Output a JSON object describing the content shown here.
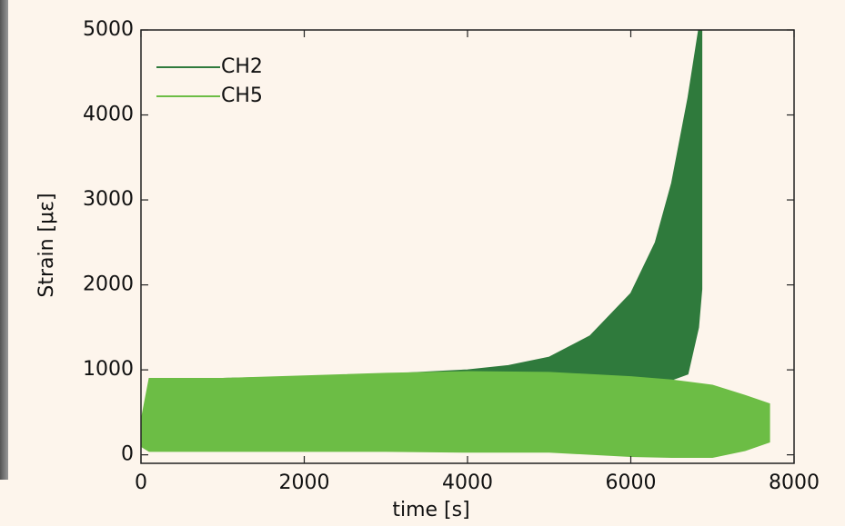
{
  "chart_data": {
    "type": "band",
    "xlabel": "time [s]",
    "ylabel": "Strain [με]",
    "xlim": [
      0,
      8000
    ],
    "ylim": [
      -100,
      5000
    ],
    "xticks": [
      0,
      2000,
      4000,
      6000,
      8000
    ],
    "yticks": [
      0,
      1000,
      2000,
      3000,
      4000,
      5000
    ],
    "legend": "upper left",
    "series": [
      {
        "name": "CH2",
        "color": "#2f7a3c",
        "x": [
          0,
          100,
          1000,
          2000,
          3000,
          4000,
          4500,
          5000,
          5500,
          6000,
          6300,
          6500,
          6700,
          6830,
          6870
        ],
        "upper": [
          350,
          880,
          900,
          920,
          950,
          1000,
          1050,
          1150,
          1400,
          1900,
          2500,
          3200,
          4200,
          5000,
          5000
        ],
        "lower": [
          300,
          100,
          100,
          100,
          100,
          100,
          100,
          100,
          200,
          600,
          800,
          880,
          950,
          1500,
          1950
        ]
      },
      {
        "name": "CH5",
        "color": "#6cbd45",
        "x": [
          0,
          100,
          1000,
          2000,
          3000,
          4000,
          5000,
          6000,
          6500,
          7000,
          7400,
          7700
        ],
        "upper": [
          400,
          900,
          900,
          930,
          960,
          980,
          970,
          920,
          880,
          820,
          700,
          600
        ],
        "lower": [
          100,
          40,
          40,
          40,
          40,
          30,
          30,
          -20,
          -30,
          -30,
          50,
          150
        ]
      }
    ]
  }
}
